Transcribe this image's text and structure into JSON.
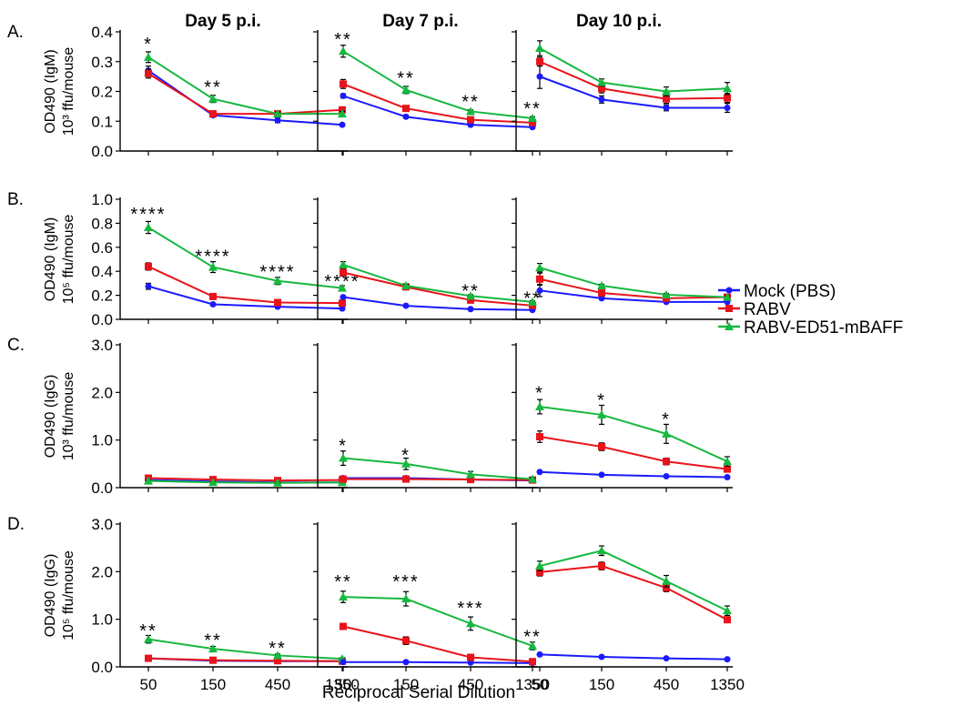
{
  "figure": {
    "x_axis_label": "Reciprocal Serial Dilution",
    "columns": [
      "Day 5 p.i.",
      "Day 7 p.i.",
      "Day 10 p.i."
    ]
  },
  "legend": [
    {
      "name": "Mock (PBS)",
      "color": "#1a1aff",
      "marker": "circle"
    },
    {
      "name": "RABV",
      "color": "#e8141b",
      "marker": "square"
    },
    {
      "name": "RABV-ED51-mBAFF",
      "color": "#16b83f",
      "marker": "triangle"
    }
  ],
  "chart_data": [
    {
      "type": "line",
      "row_label": "A.",
      "ylabel": "OD490 (IgM)",
      "ylabel2": "10³ ffu/mouse",
      "ylim": [
        0,
        0.4
      ],
      "yticks": [
        "0.0",
        "0.1",
        "0.2",
        "0.3",
        "0.4"
      ],
      "ytick_values": [
        0,
        0.1,
        0.2,
        0.3,
        0.4
      ],
      "x": [
        "50",
        "150",
        "450",
        "1350"
      ],
      "panels": [
        {
          "column": "Day 5 p.i.",
          "series": [
            {
              "name": "Mock (PBS)",
              "values": [
                0.27,
                0.12,
                0.103,
                0.088
              ],
              "errors": [
                0.015,
                0.006,
                0.008,
                0.004
              ]
            },
            {
              "name": "RABV",
              "values": [
                0.26,
                0.125,
                0.125,
                0.138
              ],
              "errors": [
                0.015,
                0.006,
                0.006,
                0.01
              ]
            },
            {
              "name": "RABV-ED51-mBAFF",
              "values": [
                0.315,
                0.175,
                0.125,
                0.125
              ],
              "errors": [
                0.018,
                0.012,
                0.006,
                0.008
              ]
            }
          ],
          "annotations": [
            {
              "x": "50",
              "text": "*",
              "y": 0.37
            },
            {
              "x": "150",
              "text": "**",
              "y": 0.225
            }
          ]
        },
        {
          "column": "Day 7 p.i.",
          "series": [
            {
              "name": "Mock (PBS)",
              "values": [
                0.185,
                0.115,
                0.088,
                0.08
              ],
              "errors": [
                0.007,
                0.005,
                0.004,
                0.004
              ]
            },
            {
              "name": "RABV",
              "values": [
                0.225,
                0.143,
                0.105,
                0.095
              ],
              "errors": [
                0.015,
                0.008,
                0.005,
                0.005
              ]
            },
            {
              "name": "RABV-ED51-mBAFF",
              "values": [
                0.335,
                0.205,
                0.133,
                0.11
              ],
              "errors": [
                0.02,
                0.012,
                0.005,
                0.005
              ]
            }
          ],
          "annotations": [
            {
              "x": "50",
              "text": "**",
              "y": 0.385
            },
            {
              "x": "150",
              "text": "**",
              "y": 0.255
            },
            {
              "x": "450",
              "text": "**",
              "y": 0.175
            },
            {
              "x": "1350",
              "text": "**",
              "y": 0.152
            }
          ]
        },
        {
          "column": "Day 10 p.i.",
          "series": [
            {
              "name": "Mock (PBS)",
              "values": [
                0.25,
                0.173,
                0.145,
                0.145
              ],
              "errors": [
                0.04,
                0.012,
                0.01,
                0.015
              ]
            },
            {
              "name": "RABV",
              "values": [
                0.3,
                0.21,
                0.175,
                0.178
              ],
              "errors": [
                0.015,
                0.015,
                0.015,
                0.015
              ]
            },
            {
              "name": "RABV-ED51-mBAFF",
              "values": [
                0.345,
                0.23,
                0.2,
                0.21
              ],
              "errors": [
                0.025,
                0.012,
                0.015,
                0.02
              ]
            }
          ],
          "annotations": []
        }
      ]
    },
    {
      "type": "line",
      "row_label": "B.",
      "ylabel": "OD490 (IgM)",
      "ylabel2": "10⁵ ffu/mouse",
      "ylim": [
        0,
        1.0
      ],
      "yticks": [
        "0.0",
        "0.2",
        "0.4",
        "0.6",
        "0.8",
        "1.0"
      ],
      "ytick_values": [
        0,
        0.2,
        0.4,
        0.6,
        0.8,
        1.0
      ],
      "x": [
        "50",
        "150",
        "450",
        "1350"
      ],
      "panels": [
        {
          "column": "Day 5 p.i.",
          "series": [
            {
              "name": "Mock (PBS)",
              "values": [
                0.275,
                0.125,
                0.105,
                0.09
              ],
              "errors": [
                0.025,
                0.008,
                0.006,
                0.005
              ]
            },
            {
              "name": "RABV",
              "values": [
                0.44,
                0.19,
                0.14,
                0.135
              ],
              "errors": [
                0.03,
                0.008,
                0.006,
                0.006
              ]
            },
            {
              "name": "RABV-ED51-mBAFF",
              "values": [
                0.765,
                0.435,
                0.32,
                0.26
              ],
              "errors": [
                0.05,
                0.045,
                0.03,
                0.02
              ]
            }
          ],
          "annotations": [
            {
              "x": "50",
              "text": "****",
              "y": 0.9
            },
            {
              "x": "150",
              "text": "****",
              "y": 0.55
            },
            {
              "x": "450",
              "text": "****",
              "y": 0.42
            },
            {
              "x": "1350",
              "text": "****",
              "y": 0.34
            }
          ]
        },
        {
          "column": "Day 7 p.i.",
          "series": [
            {
              "name": "Mock (PBS)",
              "values": [
                0.185,
                0.113,
                0.085,
                0.078
              ],
              "errors": [
                0.006,
                0.005,
                0.004,
                0.004
              ]
            },
            {
              "name": "RABV",
              "values": [
                0.39,
                0.27,
                0.16,
                0.115
              ],
              "errors": [
                0.03,
                0.012,
                0.01,
                0.01
              ]
            },
            {
              "name": "RABV-ED51-mBAFF",
              "values": [
                0.455,
                0.28,
                0.195,
                0.145
              ],
              "errors": [
                0.025,
                0.012,
                0.01,
                0.01
              ]
            }
          ],
          "annotations": [
            {
              "x": "450",
              "text": "**",
              "y": 0.26
            },
            {
              "x": "1350",
              "text": "**",
              "y": 0.2
            }
          ]
        },
        {
          "column": "Day 10 p.i.",
          "series": [
            {
              "name": "Mock (PBS)",
              "values": [
                0.24,
                0.175,
                0.145,
                0.145
              ],
              "errors": [
                0.05,
                0.01,
                0.01,
                0.01
              ]
            },
            {
              "name": "RABV",
              "values": [
                0.335,
                0.22,
                0.175,
                0.185
              ],
              "errors": [
                0.05,
                0.015,
                0.01,
                0.01
              ]
            },
            {
              "name": "RABV-ED51-mBAFF",
              "values": [
                0.43,
                0.28,
                0.205,
                0.185
              ],
              "errors": [
                0.035,
                0.012,
                0.01,
                0.01
              ]
            }
          ],
          "annotations": []
        }
      ]
    },
    {
      "type": "line",
      "row_label": "C.",
      "ylabel": "OD490 (IgG)",
      "ylabel2": "10³ ffu/mouse",
      "ylim": [
        0,
        3.0
      ],
      "yticks": [
        "0.0",
        "1.0",
        "2.0",
        "3.0"
      ],
      "ytick_values": [
        0,
        1,
        2,
        3
      ],
      "x": [
        "50",
        "150",
        "450",
        "1350"
      ],
      "panels": [
        {
          "column": "Day 5 p.i.",
          "series": [
            {
              "name": "Mock (PBS)",
              "values": [
                0.16,
                0.13,
                0.11,
                0.11
              ],
              "errors": [
                0.01,
                0.01,
                0.01,
                0.01
              ]
            },
            {
              "name": "RABV",
              "values": [
                0.2,
                0.17,
                0.15,
                0.16
              ],
              "errors": [
                0.02,
                0.02,
                0.02,
                0.02
              ]
            },
            {
              "name": "RABV-ED51-mBAFF",
              "values": [
                0.14,
                0.11,
                0.1,
                0.11
              ],
              "errors": [
                0.02,
                0.01,
                0.01,
                0.01
              ]
            }
          ],
          "annotations": []
        },
        {
          "column": "Day 7 p.i.",
          "series": [
            {
              "name": "Mock (PBS)",
              "values": [
                0.2,
                0.2,
                0.17,
                0.15
              ],
              "errors": [
                0.01,
                0.01,
                0.01,
                0.01
              ]
            },
            {
              "name": "RABV",
              "values": [
                0.18,
                0.18,
                0.17,
                0.16
              ],
              "errors": [
                0.02,
                0.02,
                0.02,
                0.02
              ]
            },
            {
              "name": "RABV-ED51-mBAFF",
              "values": [
                0.62,
                0.5,
                0.28,
                0.18
              ],
              "errors": [
                0.15,
                0.12,
                0.06,
                0.03
              ]
            }
          ],
          "annotations": [
            {
              "x": "50",
              "text": "*",
              "y": 0.95
            },
            {
              "x": "150",
              "text": "*",
              "y": 0.75
            }
          ]
        },
        {
          "column": "Day 10 p.i.",
          "series": [
            {
              "name": "Mock (PBS)",
              "values": [
                0.33,
                0.27,
                0.24,
                0.22
              ],
              "errors": [
                0.02,
                0.02,
                0.02,
                0.02
              ]
            },
            {
              "name": "RABV",
              "values": [
                1.07,
                0.86,
                0.55,
                0.39
              ],
              "errors": [
                0.12,
                0.08,
                0.07,
                0.05
              ]
            },
            {
              "name": "RABV-ED51-mBAFF",
              "values": [
                1.7,
                1.53,
                1.13,
                0.55
              ],
              "errors": [
                0.15,
                0.2,
                0.2,
                0.1
              ]
            }
          ],
          "annotations": [
            {
              "x": "50",
              "text": "*",
              "y": 2.05
            },
            {
              "x": "150",
              "text": "*",
              "y": 1.9
            },
            {
              "x": "450",
              "text": "*",
              "y": 1.5
            }
          ]
        }
      ]
    },
    {
      "type": "line",
      "row_label": "D.",
      "ylabel": "OD490 (IgG)",
      "ylabel2": "10⁵ ffu/mouse",
      "ylim": [
        0,
        3.0
      ],
      "yticks": [
        "0.0",
        "1.0",
        "2.0",
        "3.0"
      ],
      "ytick_values": [
        0,
        1,
        2,
        3
      ],
      "x": [
        "50",
        "150",
        "450",
        "1350"
      ],
      "panels": [
        {
          "column": "Day 5 p.i.",
          "series": [
            {
              "name": "Mock (PBS)",
              "values": [
                0.18,
                0.13,
                0.12,
                0.12
              ],
              "errors": [
                0.01,
                0.01,
                0.01,
                0.01
              ]
            },
            {
              "name": "RABV",
              "values": [
                0.18,
                0.14,
                0.13,
                0.12
              ],
              "errors": [
                0.01,
                0.01,
                0.01,
                0.01
              ]
            },
            {
              "name": "RABV-ED51-mBAFF",
              "values": [
                0.58,
                0.38,
                0.24,
                0.17
              ],
              "errors": [
                0.08,
                0.05,
                0.03,
                0.02
              ]
            }
          ],
          "annotations": [
            {
              "x": "50",
              "text": "**",
              "y": 0.82
            },
            {
              "x": "150",
              "text": "**",
              "y": 0.62
            },
            {
              "x": "450",
              "text": "**",
              "y": 0.46
            }
          ]
        },
        {
          "column": "Day 7 p.i.",
          "series": [
            {
              "name": "Mock (PBS)",
              "values": [
                0.1,
                0.1,
                0.09,
                0.08
              ],
              "errors": [
                0.01,
                0.01,
                0.01,
                0.01
              ]
            },
            {
              "name": "RABV",
              "values": [
                0.85,
                0.55,
                0.2,
                0.11
              ],
              "errors": [
                0.06,
                0.08,
                0.05,
                0.02
              ]
            },
            {
              "name": "RABV-ED51-mBAFF",
              "values": [
                1.47,
                1.43,
                0.91,
                0.44
              ],
              "errors": [
                0.12,
                0.15,
                0.14,
                0.08
              ]
            }
          ],
          "annotations": [
            {
              "x": "50",
              "text": "**",
              "y": 1.85
            },
            {
              "x": "150",
              "text": "***",
              "y": 1.85
            },
            {
              "x": "450",
              "text": "***",
              "y": 1.3
            },
            {
              "x": "1350",
              "text": "**",
              "y": 0.7
            }
          ]
        },
        {
          "column": "Day 10 p.i.",
          "series": [
            {
              "name": "Mock (PBS)",
              "values": [
                0.26,
                0.21,
                0.18,
                0.16
              ],
              "errors": [
                0.02,
                0.02,
                0.02,
                0.02
              ]
            },
            {
              "name": "RABV",
              "values": [
                1.99,
                2.12,
                1.66,
                0.99
              ],
              "errors": [
                0.08,
                0.08,
                0.08,
                0.06
              ]
            },
            {
              "name": "RABV-ED51-mBAFF",
              "values": [
                2.12,
                2.44,
                1.8,
                1.18
              ],
              "errors": [
                0.1,
                0.1,
                0.12,
                0.1
              ]
            }
          ],
          "annotations": []
        }
      ]
    }
  ]
}
